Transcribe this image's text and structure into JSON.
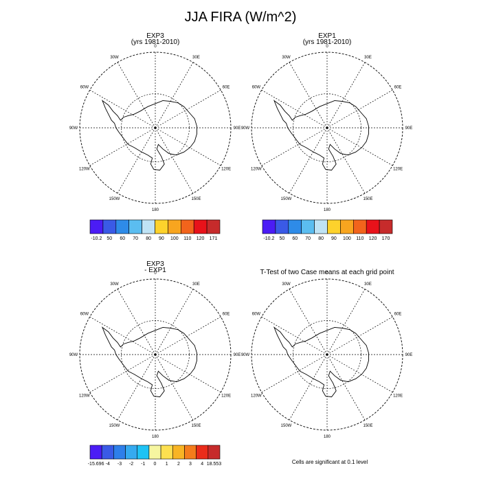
{
  "title": "JJA FIRA (W/m^2)",
  "panels": [
    {
      "id": "p1",
      "title_lines": [
        "EXP3",
        "(yrs 1981-2010)"
      ]
    },
    {
      "id": "p2",
      "title_lines": [
        "EXP1",
        "(yrs 1981-2010)"
      ]
    },
    {
      "id": "p3",
      "title_lines": [
        "EXP3",
        "- EXP1"
      ]
    },
    {
      "id": "p4",
      "title_lines": [
        "T-Test of two Case means at each grid point"
      ]
    }
  ],
  "longitude_labels": [
    "0",
    "30E",
    "60E",
    "90E",
    "120E",
    "150E",
    "180",
    "150W",
    "120W",
    "90W",
    "60W",
    "30W"
  ],
  "colorbars": [
    {
      "id": "cb1",
      "labels": [
        "-10.2",
        "50",
        "60",
        "70",
        "80",
        "90",
        "100",
        "110",
        "120",
        "171"
      ],
      "colors": [
        "#4b1cf5",
        "#3a5ae6",
        "#2e8be8",
        "#5bbdf0",
        "#bfe3f5",
        "#fdd22c",
        "#f8a51f",
        "#f2641c",
        "#e8121a",
        "#c62b2b"
      ]
    },
    {
      "id": "cb2",
      "labels": [
        "-10.2",
        "50",
        "60",
        "70",
        "80",
        "90",
        "100",
        "110",
        "120",
        "170"
      ],
      "colors": [
        "#4b1cf5",
        "#3a5ae6",
        "#2e8be8",
        "#5bbdf0",
        "#bfe3f5",
        "#fdd22c",
        "#f8a51f",
        "#f2641c",
        "#e8121a",
        "#c62b2b"
      ]
    },
    {
      "id": "cb3",
      "labels": [
        "-15.696",
        "-4",
        "-3",
        "-2",
        "-1",
        "0",
        "1",
        "2",
        "3",
        "4",
        "18.553"
      ],
      "colors": [
        "#4b1cf5",
        "#3a5ae6",
        "#2e7fea",
        "#35aaf0",
        "#1fc3f5",
        "#f6f6a0",
        "#fde050",
        "#f8b424",
        "#f47c1c",
        "#ea2c1a",
        "#c62b2b"
      ]
    }
  ],
  "footnote": "Cells are significant at 0.1 level"
}
